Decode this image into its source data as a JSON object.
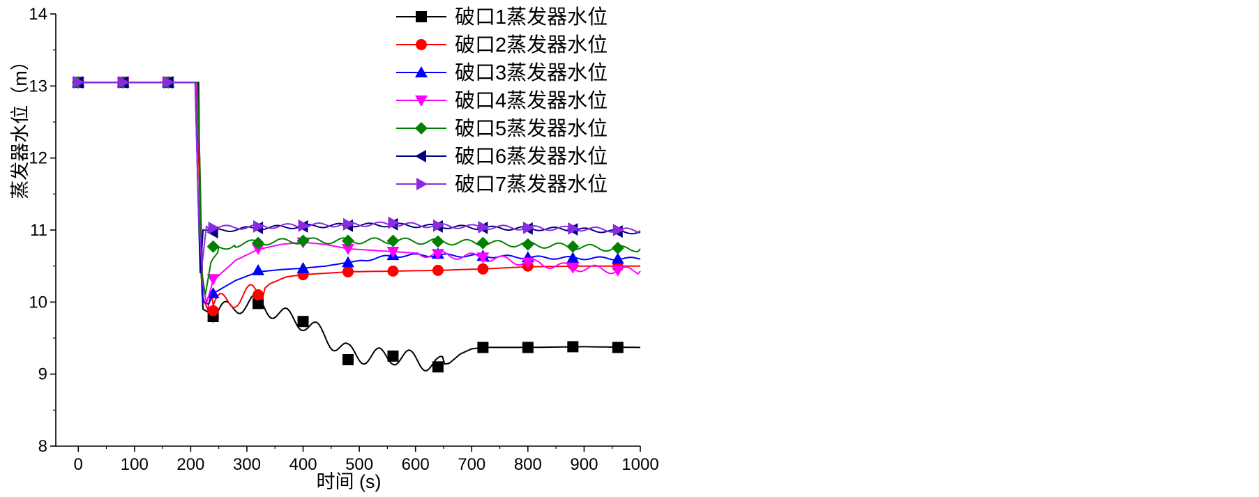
{
  "chart_data": {
    "type": "line",
    "title": "",
    "xlabel": "时间 (s)",
    "ylabel": "蒸发器水位（m）",
    "xlim": [
      -40,
      1000
    ],
    "ylim": [
      8,
      14
    ],
    "xticks": [
      0,
      100,
      200,
      300,
      400,
      500,
      600,
      700,
      800,
      900,
      1000
    ],
    "yticks": [
      8,
      9,
      10,
      11,
      12,
      13,
      14
    ],
    "grid": false,
    "legend_position": "top-right",
    "series": [
      {
        "name": "破口1蒸发器水位",
        "color": "#000000",
        "marker": "square",
        "points": [
          [
            0,
            13.05
          ],
          [
            208,
            13.05
          ],
          [
            214,
            13.05
          ],
          [
            218,
            10.5
          ],
          [
            222,
            9.9
          ],
          [
            240,
            9.82
          ],
          [
            280,
            9.95
          ],
          [
            320,
            10.0
          ],
          [
            360,
            9.82
          ],
          [
            400,
            9.72
          ],
          [
            440,
            9.52
          ],
          [
            480,
            9.3
          ],
          [
            520,
            9.24
          ],
          [
            560,
            9.25
          ],
          [
            600,
            9.2
          ],
          [
            640,
            9.12
          ],
          [
            660,
            9.15
          ],
          [
            680,
            9.28
          ],
          [
            700,
            9.35
          ],
          [
            720,
            9.37
          ],
          [
            800,
            9.37
          ],
          [
            900,
            9.38
          ],
          [
            1000,
            9.37
          ]
        ],
        "noise": [
          [
            230,
            650,
            0.12
          ]
        ],
        "marker_points": [
          [
            0,
            13.05
          ],
          [
            80,
            13.05
          ],
          [
            160,
            13.05
          ],
          [
            240,
            9.8
          ],
          [
            320,
            9.98
          ],
          [
            400,
            9.73
          ],
          [
            480,
            9.2
          ],
          [
            560,
            9.25
          ],
          [
            640,
            9.1
          ],
          [
            720,
            9.37
          ],
          [
            800,
            9.37
          ],
          [
            880,
            9.38
          ],
          [
            960,
            9.37
          ]
        ]
      },
      {
        "name": "破口2蒸发器水位",
        "color": "#ff0000",
        "marker": "circle",
        "points": [
          [
            0,
            13.05
          ],
          [
            210,
            13.05
          ],
          [
            215,
            11.8
          ],
          [
            220,
            10.1
          ],
          [
            230,
            9.9
          ],
          [
            240,
            9.92
          ],
          [
            280,
            10.08
          ],
          [
            320,
            10.1
          ],
          [
            340,
            10.25
          ],
          [
            370,
            10.35
          ],
          [
            400,
            10.38
          ],
          [
            480,
            10.42
          ],
          [
            560,
            10.43
          ],
          [
            640,
            10.44
          ],
          [
            720,
            10.46
          ],
          [
            800,
            10.49
          ],
          [
            900,
            10.5
          ],
          [
            1000,
            10.5
          ]
        ],
        "noise": [
          [
            230,
            330,
            0.15
          ]
        ],
        "marker_points": [
          [
            0,
            13.05
          ],
          [
            80,
            13.05
          ],
          [
            160,
            13.05
          ],
          [
            240,
            9.88
          ],
          [
            320,
            10.1
          ],
          [
            400,
            10.38
          ],
          [
            480,
            10.42
          ],
          [
            560,
            10.43
          ],
          [
            640,
            10.44
          ],
          [
            720,
            10.46
          ],
          [
            800,
            10.5
          ],
          [
            880,
            10.52
          ],
          [
            960,
            10.49
          ]
        ]
      },
      {
        "name": "破口3蒸发器水位",
        "color": "#0000ff",
        "marker": "triangle-up",
        "points": [
          [
            0,
            13.05
          ],
          [
            212,
            13.05
          ],
          [
            217,
            11.5
          ],
          [
            222,
            10.0
          ],
          [
            232,
            9.97
          ],
          [
            240,
            10.12
          ],
          [
            280,
            10.3
          ],
          [
            320,
            10.42
          ],
          [
            360,
            10.45
          ],
          [
            400,
            10.47
          ],
          [
            440,
            10.5
          ],
          [
            480,
            10.55
          ],
          [
            520,
            10.6
          ],
          [
            560,
            10.64
          ],
          [
            600,
            10.65
          ],
          [
            640,
            10.65
          ],
          [
            720,
            10.64
          ],
          [
            800,
            10.62
          ],
          [
            900,
            10.61
          ],
          [
            1000,
            10.6
          ]
        ],
        "noise": [
          [
            500,
            1000,
            0.02
          ]
        ],
        "marker_points": [
          [
            0,
            13.05
          ],
          [
            80,
            13.05
          ],
          [
            160,
            13.05
          ],
          [
            240,
            10.12
          ],
          [
            320,
            10.44
          ],
          [
            400,
            10.47
          ],
          [
            480,
            10.55
          ],
          [
            560,
            10.65
          ],
          [
            640,
            10.67
          ],
          [
            720,
            10.64
          ],
          [
            800,
            10.62
          ],
          [
            880,
            10.61
          ],
          [
            960,
            10.6
          ]
        ]
      },
      {
        "name": "破口4蒸发器水位",
        "color": "#ff00ff",
        "marker": "triangle-down",
        "points": [
          [
            0,
            13.05
          ],
          [
            210,
            13.05
          ],
          [
            216,
            12.0
          ],
          [
            221,
            10.3
          ],
          [
            228,
            9.98
          ],
          [
            240,
            10.3
          ],
          [
            280,
            10.58
          ],
          [
            320,
            10.73
          ],
          [
            360,
            10.8
          ],
          [
            400,
            10.83
          ],
          [
            440,
            10.8
          ],
          [
            480,
            10.74
          ],
          [
            560,
            10.7
          ],
          [
            640,
            10.66
          ],
          [
            720,
            10.62
          ],
          [
            800,
            10.55
          ],
          [
            880,
            10.48
          ],
          [
            960,
            10.44
          ],
          [
            1000,
            10.43
          ]
        ],
        "noise": [
          [
            600,
            1000,
            0.05
          ]
        ],
        "marker_points": [
          [
            0,
            13.05
          ],
          [
            80,
            13.05
          ],
          [
            160,
            13.05
          ],
          [
            240,
            10.32
          ],
          [
            320,
            10.74
          ],
          [
            400,
            10.83
          ],
          [
            480,
            10.74
          ],
          [
            560,
            10.7
          ],
          [
            640,
            10.67
          ],
          [
            720,
            10.62
          ],
          [
            800,
            10.55
          ],
          [
            880,
            10.48
          ],
          [
            960,
            10.44
          ]
        ]
      },
      {
        "name": "破口5蒸发器水位",
        "color": "#008000",
        "marker": "diamond",
        "points": [
          [
            0,
            13.05
          ],
          [
            212,
            13.05
          ],
          [
            216,
            12.0
          ],
          [
            220,
            10.4
          ],
          [
            226,
            10.1
          ],
          [
            236,
            10.55
          ],
          [
            250,
            10.75
          ],
          [
            280,
            10.8
          ],
          [
            320,
            10.83
          ],
          [
            400,
            10.85
          ],
          [
            480,
            10.85
          ],
          [
            560,
            10.85
          ],
          [
            640,
            10.84
          ],
          [
            720,
            10.82
          ],
          [
            800,
            10.8
          ],
          [
            880,
            10.77
          ],
          [
            960,
            10.74
          ],
          [
            1000,
            10.74
          ]
        ],
        "noise": [
          [
            240,
            1000,
            0.04
          ]
        ],
        "marker_points": [
          [
            0,
            13.05
          ],
          [
            80,
            13.05
          ],
          [
            160,
            13.05
          ],
          [
            240,
            10.77
          ],
          [
            320,
            10.82
          ],
          [
            400,
            10.85
          ],
          [
            480,
            10.85
          ],
          [
            560,
            10.85
          ],
          [
            640,
            10.84
          ],
          [
            720,
            10.82
          ],
          [
            800,
            10.8
          ],
          [
            880,
            10.77
          ],
          [
            960,
            10.75
          ]
        ]
      },
      {
        "name": "破口6蒸发器水位",
        "color": "#000080",
        "marker": "triangle-left",
        "points": [
          [
            0,
            13.05
          ],
          [
            208,
            13.05
          ],
          [
            213,
            11.5
          ],
          [
            217,
            10.4
          ],
          [
            222,
            11.0
          ],
          [
            240,
            10.99
          ],
          [
            320,
            11.03
          ],
          [
            400,
            11.05
          ],
          [
            480,
            11.07
          ],
          [
            560,
            11.07
          ],
          [
            640,
            11.05
          ],
          [
            720,
            11.03
          ],
          [
            800,
            11.02
          ],
          [
            880,
            11.01
          ],
          [
            960,
            10.98
          ],
          [
            1000,
            10.97
          ]
        ],
        "noise": [
          [
            230,
            1000,
            0.025
          ]
        ],
        "marker_points": [
          [
            0,
            13.05
          ],
          [
            80,
            13.05
          ],
          [
            160,
            13.05
          ],
          [
            240,
            10.97
          ],
          [
            320,
            11.03
          ],
          [
            400,
            11.05
          ],
          [
            480,
            11.06
          ],
          [
            560,
            11.08
          ],
          [
            640,
            11.05
          ],
          [
            720,
            11.03
          ],
          [
            800,
            11.02
          ],
          [
            880,
            11.01
          ],
          [
            960,
            10.98
          ]
        ]
      },
      {
        "name": "破口7蒸发器水位",
        "color": "#8a2be2",
        "marker": "triangle-right",
        "points": [
          [
            0,
            13.05
          ],
          [
            208,
            13.05
          ],
          [
            214,
            11.2
          ],
          [
            220,
            10.5
          ],
          [
            228,
            11.05
          ],
          [
            240,
            11.03
          ],
          [
            320,
            11.05
          ],
          [
            400,
            11.06
          ],
          [
            480,
            11.08
          ],
          [
            560,
            11.08
          ],
          [
            640,
            11.06
          ],
          [
            720,
            11.04
          ],
          [
            800,
            11.03
          ],
          [
            880,
            11.02
          ],
          [
            960,
            11.0
          ],
          [
            1000,
            10.99
          ]
        ],
        "noise": [
          [
            230,
            1000,
            0.03
          ]
        ],
        "marker_points": [
          [
            0,
            13.05
          ],
          [
            80,
            13.05
          ],
          [
            160,
            13.05
          ],
          [
            240,
            11.03
          ],
          [
            320,
            11.05
          ],
          [
            400,
            11.06
          ],
          [
            480,
            11.08
          ],
          [
            560,
            11.1
          ],
          [
            640,
            11.06
          ],
          [
            720,
            11.04
          ],
          [
            800,
            11.03
          ],
          [
            880,
            11.02
          ],
          [
            960,
            11.0
          ]
        ]
      }
    ]
  }
}
